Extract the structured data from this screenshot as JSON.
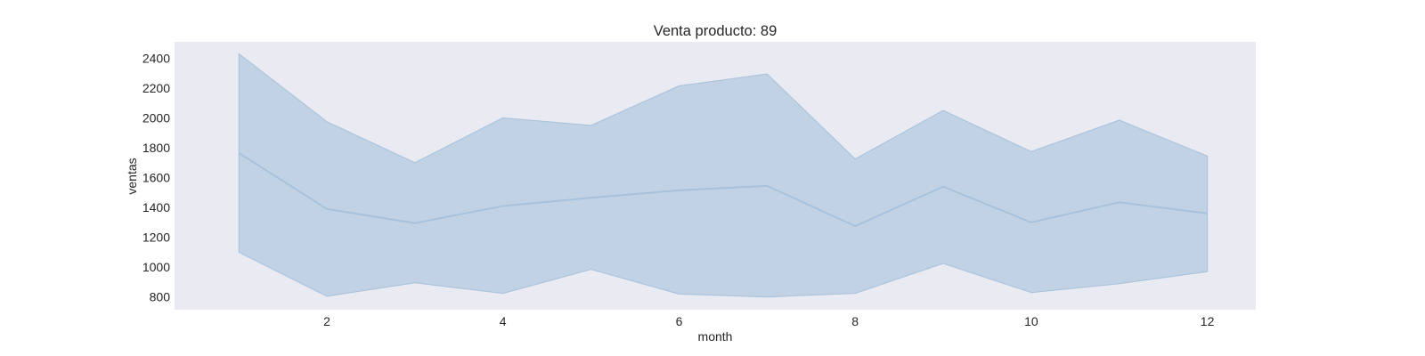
{
  "chart_data": {
    "type": "line",
    "title": "Venta producto: 89",
    "xlabel": "month",
    "ylabel": "ventas",
    "x": [
      1,
      2,
      3,
      4,
      5,
      6,
      7,
      8,
      9,
      10,
      11,
      12
    ],
    "series": [
      {
        "values": [
          1765,
          1390,
          1295,
          1410,
          1465,
          1515,
          1545,
          1275,
          1540,
          1300,
          1435,
          1360
        ],
        "band_lower": [
          1100,
          805,
          895,
          825,
          985,
          820,
          800,
          825,
          1025,
          830,
          890,
          970
        ],
        "band_upper": [
          2430,
          1975,
          1700,
          2000,
          1950,
          2215,
          2295,
          1725,
          2050,
          1775,
          1985,
          1745
        ]
      }
    ],
    "x_ticks": [
      "2",
      "4",
      "6",
      "8",
      "10",
      "12"
    ],
    "x_tick_values": [
      2,
      4,
      6,
      8,
      10,
      12
    ],
    "y_ticks": [
      "800",
      "1000",
      "1200",
      "1400",
      "1600",
      "1800",
      "2000",
      "2200",
      "2400"
    ],
    "y_tick_values": [
      800,
      1000,
      1200,
      1400,
      1600,
      1800,
      2000,
      2200,
      2400
    ],
    "xlim": [
      0.27,
      12.55
    ],
    "ylim": [
      715,
      2510
    ],
    "grid": false,
    "colors": {
      "plot_background": "#eaeaf2",
      "line": "#a5c1dc",
      "band_fill": "#c1d2e4",
      "text": "#262626"
    }
  }
}
